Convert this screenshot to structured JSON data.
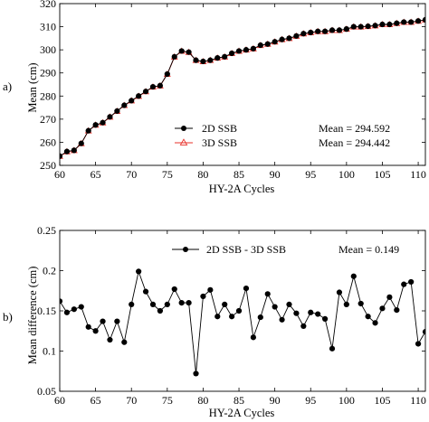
{
  "chart_data": [
    {
      "type": "line",
      "panel_label": "a)",
      "xlabel": "HY-2A Cycles",
      "ylabel": "Mean (cm)",
      "xlim": [
        60,
        111
      ],
      "ylim": [
        250,
        320
      ],
      "xticks": [
        "60",
        "65",
        "70",
        "75",
        "80",
        "85",
        "90",
        "95",
        "100",
        "105",
        "110"
      ],
      "yticks": [
        "250",
        "260",
        "270",
        "280",
        "290",
        "300",
        "310",
        "320"
      ],
      "grid": false,
      "legend_position": "lower-center",
      "x": [
        60,
        61,
        62,
        63,
        64,
        65,
        66,
        67,
        68,
        69,
        70,
        71,
        72,
        73,
        74,
        75,
        76,
        77,
        78,
        79,
        80,
        81,
        82,
        83,
        84,
        85,
        86,
        87,
        88,
        89,
        90,
        91,
        92,
        93,
        94,
        95,
        96,
        97,
        98,
        99,
        100,
        101,
        102,
        103,
        104,
        105,
        106,
        107,
        108,
        109,
        110,
        111
      ],
      "series": [
        {
          "name": "2D SSB",
          "color": "#000000",
          "marker": "filled-circle",
          "values": [
            254,
            256,
            256.5,
            259.5,
            265,
            267.5,
            268.5,
            271,
            273.5,
            276,
            278,
            280,
            282,
            284,
            284.5,
            289.5,
            297,
            299.5,
            299,
            295.5,
            295,
            295.5,
            296.5,
            297,
            298.5,
            299.5,
            300,
            300.5,
            302,
            302.5,
            303.5,
            304.5,
            305,
            306,
            307,
            307.5,
            308,
            308,
            308.5,
            308.5,
            309,
            310,
            310,
            310.2,
            310.5,
            311,
            311,
            311.5,
            312,
            312,
            312.5,
            313
          ]
        },
        {
          "name": "3D SSB",
          "color": "#e8302a",
          "marker": "open-triangle",
          "values": [
            253.9,
            255.9,
            256.4,
            259.4,
            264.9,
            267.4,
            268.4,
            270.9,
            273.4,
            275.9,
            277.9,
            279.9,
            281.9,
            283.9,
            284.4,
            289.4,
            296.9,
            299.4,
            298.9,
            295.4,
            294.9,
            295.4,
            296.4,
            296.9,
            298.4,
            299.4,
            299.9,
            300.4,
            301.9,
            302.4,
            303.4,
            304.4,
            304.9,
            305.9,
            306.9,
            307.4,
            307.9,
            307.9,
            308.4,
            308.4,
            308.9,
            309.9,
            309.9,
            310.1,
            310.4,
            310.9,
            310.9,
            311.4,
            311.9,
            311.9,
            312.4,
            312.9
          ]
        }
      ],
      "annotations": [
        "Mean = 294.592",
        "Mean = 294.442"
      ]
    },
    {
      "type": "line",
      "panel_label": "b)",
      "xlabel": "HY-2A Cycles",
      "ylabel": "Mean difference (cm)",
      "xlim": [
        60,
        111
      ],
      "ylim": [
        0.05,
        0.25
      ],
      "xticks": [
        "60",
        "65",
        "70",
        "75",
        "80",
        "85",
        "90",
        "95",
        "100",
        "105",
        "110"
      ],
      "yticks": [
        "0.05",
        "0.1",
        "0.15",
        "0.2",
        "0.25"
      ],
      "grid": false,
      "legend_position": "top-center",
      "x": [
        60,
        61,
        62,
        63,
        64,
        65,
        66,
        67,
        68,
        69,
        70,
        71,
        72,
        73,
        74,
        75,
        76,
        77,
        78,
        79,
        80,
        81,
        82,
        83,
        84,
        85,
        86,
        87,
        88,
        89,
        90,
        91,
        92,
        93,
        94,
        95,
        96,
        97,
        98,
        99,
        100,
        101,
        102,
        103,
        104,
        105,
        106,
        107,
        108,
        109,
        110,
        111
      ],
      "series": [
        {
          "name": "2D SSB - 3D SSB",
          "color": "#000000",
          "marker": "filled-circle",
          "values": [
            0.162,
            0.148,
            0.152,
            0.155,
            0.13,
            0.125,
            0.137,
            0.114,
            0.137,
            0.111,
            0.158,
            0.199,
            0.174,
            0.158,
            0.15,
            0.158,
            0.177,
            0.16,
            0.16,
            0.072,
            0.168,
            0.176,
            0.143,
            0.158,
            0.143,
            0.15,
            0.178,
            0.117,
            0.142,
            0.171,
            0.155,
            0.139,
            0.158,
            0.147,
            0.131,
            0.148,
            0.146,
            0.14,
            0.103,
            0.173,
            0.158,
            0.193,
            0.159,
            0.143,
            0.135,
            0.153,
            0.167,
            0.151,
            0.183,
            0.186,
            0.109,
            0.124
          ]
        }
      ],
      "annotations": [
        "Mean = 0.149"
      ]
    }
  ]
}
